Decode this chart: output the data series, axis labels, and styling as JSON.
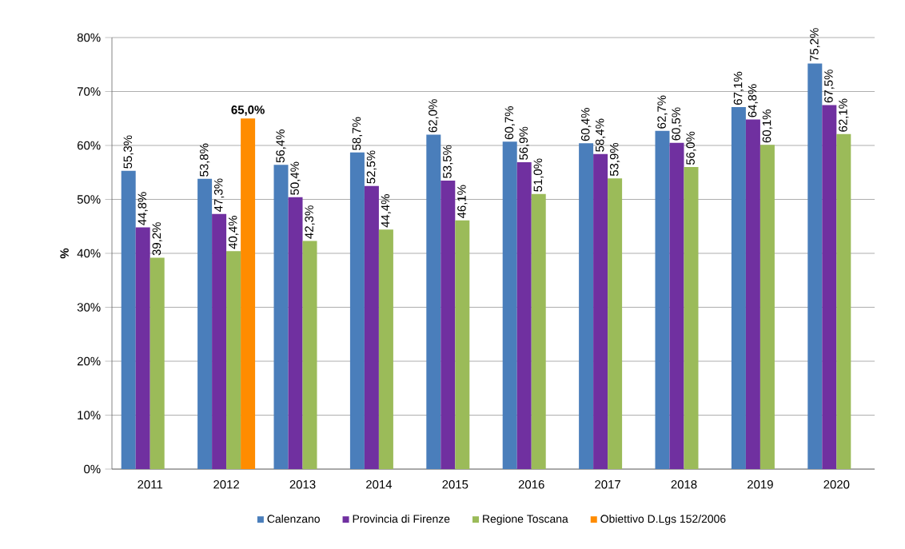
{
  "chart_data": {
    "type": "bar",
    "ylabel": "%",
    "categories": [
      "2011",
      "2012",
      "2013",
      "2014",
      "2015",
      "2016",
      "2017",
      "2018",
      "2019",
      "2020"
    ],
    "series": [
      {
        "name": "Calenzano",
        "color": "#4a7ebb",
        "values": [
          55.3,
          53.8,
          56.4,
          58.7,
          62.0,
          60.7,
          60.4,
          62.7,
          67.1,
          75.2
        ],
        "value_labels": [
          "55,3%",
          "53,8%",
          "56,4%",
          "58,7%",
          "62,0%",
          "60,7%",
          "60,4%",
          "62,7%",
          "67,1%",
          "75,2%"
        ]
      },
      {
        "name": "Provincia di Firenze",
        "color": "#7030a0",
        "values": [
          44.8,
          47.3,
          50.4,
          52.5,
          53.5,
          56.9,
          58.4,
          60.5,
          64.8,
          67.5
        ],
        "value_labels": [
          "44,8%",
          "47,3%",
          "50,4%",
          "52,5%",
          "53,5%",
          "56,9%",
          "58,4%",
          "60,5%",
          "64,8%",
          "67,5%"
        ]
      },
      {
        "name": "Regione Toscana",
        "color": "#9bbb59",
        "values": [
          39.2,
          40.4,
          42.3,
          44.4,
          46.1,
          51.0,
          53.9,
          56.0,
          60.1,
          62.1
        ],
        "value_labels": [
          "39,2%",
          "40,4%",
          "42,3%",
          "44,4%",
          "46,1%",
          "51,0%",
          "53,9%",
          "56,0%",
          "60,1%",
          "62,1%"
        ]
      },
      {
        "name": "Obiettivo D.Lgs 152/2006",
        "color": "#ff8c00",
        "values": [
          null,
          65.0,
          null,
          null,
          null,
          null,
          null,
          null,
          null,
          null
        ],
        "value_labels": [
          null,
          "65,0%",
          null,
          null,
          null,
          null,
          null,
          null,
          null,
          null
        ]
      }
    ],
    "ylim": [
      0,
      80
    ],
    "yticks": [
      {
        "value": 0,
        "label": "0%"
      },
      {
        "value": 10,
        "label": "10%"
      },
      {
        "value": 20,
        "label": "20%"
      },
      {
        "value": 30,
        "label": "30%"
      },
      {
        "value": 40,
        "label": "40%"
      },
      {
        "value": 50,
        "label": "50%"
      },
      {
        "value": 60,
        "label": "60%"
      },
      {
        "value": 70,
        "label": "70%"
      },
      {
        "value": 80,
        "label": "80%"
      }
    ],
    "grid": "y",
    "legend": "bottom"
  }
}
